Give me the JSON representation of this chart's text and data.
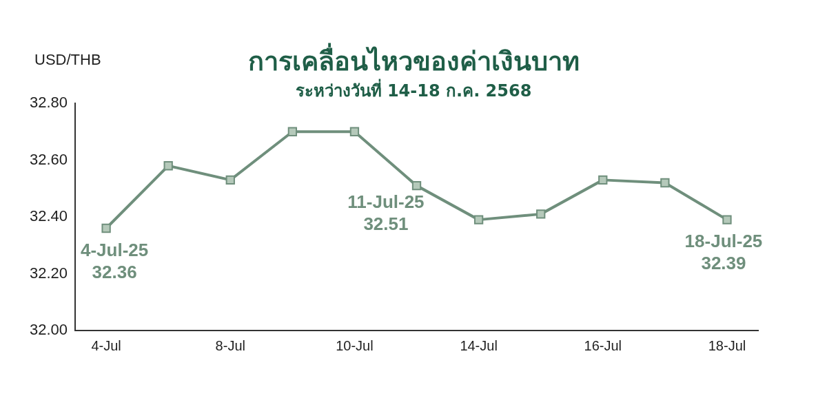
{
  "chart_data": {
    "type": "line",
    "title": "การเคลื่อนไหวของค่าเงินบาท",
    "subtitle": "ระหว่างวันที่ 14-18 ก.ค. 2568",
    "ylabel": "USD/THB",
    "categories": [
      "4-Jul",
      null,
      "8-Jul",
      null,
      "10-Jul",
      null,
      "14-Jul",
      null,
      "16-Jul",
      null,
      "18-Jul"
    ],
    "series": [
      {
        "color": "#6f8f7c",
        "values": [
          32.36,
          32.58,
          32.53,
          32.7,
          32.7,
          32.51,
          32.39,
          32.41,
          32.53,
          32.52,
          32.39
        ]
      }
    ],
    "ylim": [
      32.0,
      32.8
    ],
    "yticks": [
      {
        "value": 32.0,
        "label": "32.00"
      },
      {
        "value": 32.2,
        "label": "32.20"
      },
      {
        "value": 32.4,
        "label": "32.40"
      },
      {
        "value": 32.6,
        "label": "32.60"
      },
      {
        "value": 32.8,
        "label": "32.80"
      }
    ],
    "grid": false,
    "legend": false,
    "marker": "square",
    "line_style": "solid",
    "annotations": [
      {
        "text": "4-Jul-25\n32.36",
        "x": "4-Jul",
        "y": 32.36
      },
      "11-Jul-25\n32.51",
      {
        "text": "18-Jul-25\n32.39",
        "x": "18-Jul",
        "y": 32.39
      }
    ]
  }
}
